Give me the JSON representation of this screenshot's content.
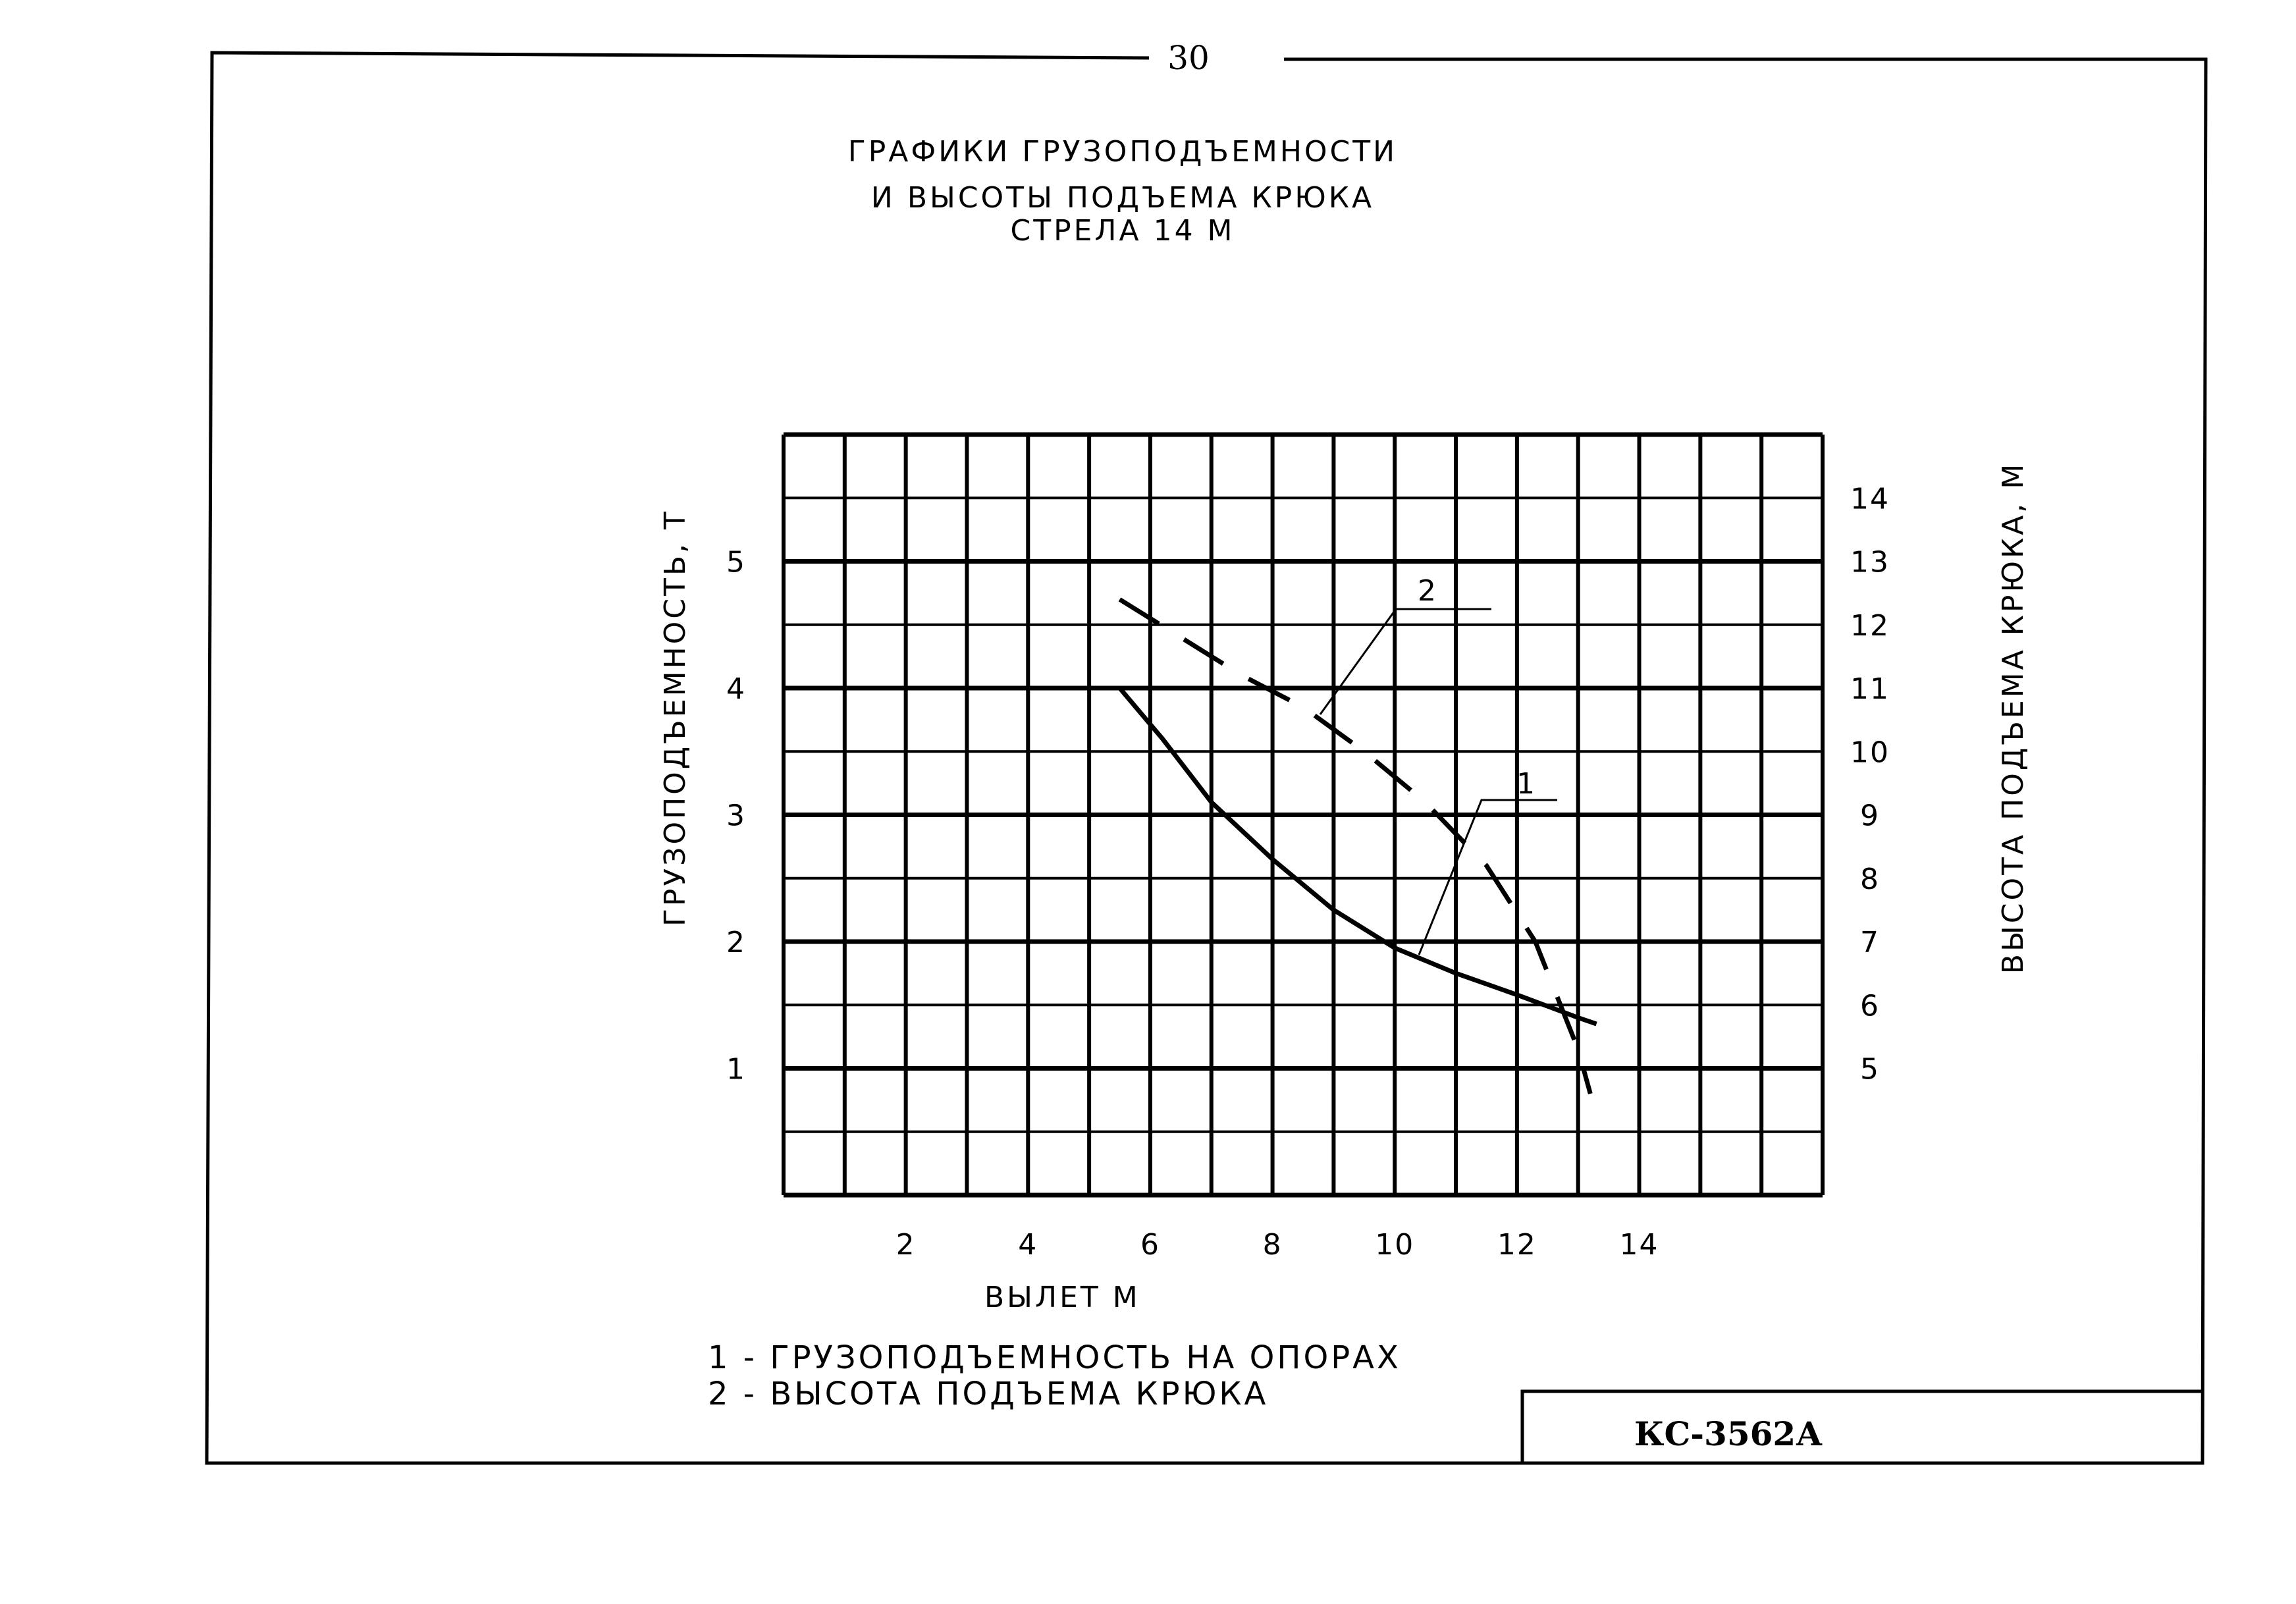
{
  "page_number": "30",
  "title_lines": [
    "ГРАФИКИ ГРУЗОПОДЪЕМНОСТИ",
    "И ВЫСОТЫ ПОДЪЕМА КРЮКА",
    "СТРЕЛА 14 М"
  ],
  "legend": [
    "1 - ГРУЗОПОДЪЕМНОСТЬ НА ОПОРАХ",
    "2 - ВЫСОТА ПОДЪЕМА КРЮКА"
  ],
  "stamp": "КС-3562А",
  "chart_data": {
    "type": "line",
    "xlabel": "ВЫЛЕТ М",
    "ylabel_left": "ГРУЗОПОДЪЕМНОСТЬ, Т",
    "ylabel_right": "ВЫСОТА ПОДЪЕМА КРЮКА, М",
    "xlim": [
      0,
      17
    ],
    "ylim_left": [
      0,
      6
    ],
    "ylim_right": [
      3,
      15
    ],
    "x_ticks": [
      2,
      4,
      6,
      8,
      10,
      12,
      14
    ],
    "y_left_ticks": [
      1,
      2,
      3,
      4,
      5
    ],
    "y_right_ticks": [
      5,
      6,
      7,
      8,
      9,
      10,
      11,
      12,
      13,
      14
    ],
    "grid": true,
    "series": [
      {
        "name": "1",
        "style": "solid",
        "axis": "left",
        "x": [
          5.5,
          6.2,
          7.0,
          8.0,
          9.0,
          10.0,
          11.0,
          12.0,
          13.0,
          13.3
        ],
        "values": [
          4.0,
          3.6,
          3.1,
          2.65,
          2.25,
          1.95,
          1.75,
          1.58,
          1.4,
          1.35
        ]
      },
      {
        "name": "2",
        "style": "dashed",
        "axis": "right",
        "x": [
          5.5,
          6.5,
          7.5,
          8.5,
          9.5,
          10.5,
          11.5,
          12.3,
          13.0,
          13.2
        ],
        "values": [
          12.4,
          11.8,
          11.2,
          10.7,
          10.0,
          9.2,
          8.2,
          7.0,
          5.3,
          4.6
        ]
      }
    ],
    "series_colors": [
      "#000000",
      "#000000"
    ]
  }
}
